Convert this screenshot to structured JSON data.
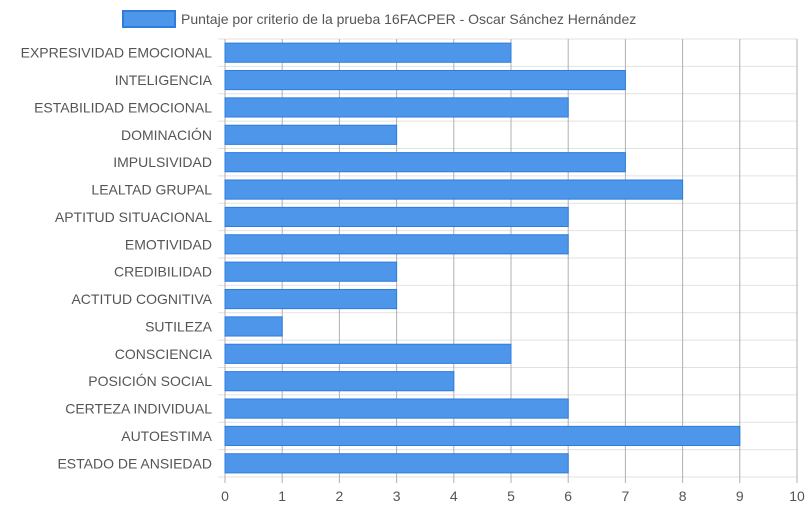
{
  "chart_data": {
    "type": "bar",
    "orientation": "horizontal",
    "title": "",
    "xlabel": "",
    "ylabel": "",
    "xlim": [
      0,
      10
    ],
    "x_ticks": [
      "0",
      "1",
      "2",
      "3",
      "4",
      "5",
      "6",
      "7",
      "8",
      "9",
      "10"
    ],
    "grid": true,
    "legend_position": "top",
    "categories": [
      "EXPRESIVIDAD EMOCIONAL",
      "INTELIGENCIA",
      "ESTABILIDAD EMOCIONAL",
      "DOMINACIÓN",
      "IMPULSIVIDAD",
      "LEALTAD GRUPAL",
      "APTITUD SITUACIONAL",
      "EMOTIVIDAD",
      "CREDIBILIDAD",
      "ACTITUD COGNITIVA",
      "SUTILEZA",
      "CONSCIENCIA",
      "POSICIÓN SOCIAL",
      "CERTEZA INDIVIDUAL",
      "AUTOESTIMA",
      "ESTADO DE ANSIEDAD"
    ],
    "series": [
      {
        "name": "Puntaje por criterio de la prueba 16FACPER - Oscar Sánchez  Hernández",
        "values": [
          5,
          7,
          6,
          3,
          7,
          8,
          6,
          6,
          3,
          3,
          1,
          5,
          4,
          6,
          9,
          6
        ]
      }
    ],
    "colors": {
      "bar_fill": "#4d96ea",
      "bar_stroke": "#2e7ddc",
      "grid": "#e2e2e2",
      "grid_strong": "#b0b0b0",
      "label_text": "#555555"
    }
  }
}
